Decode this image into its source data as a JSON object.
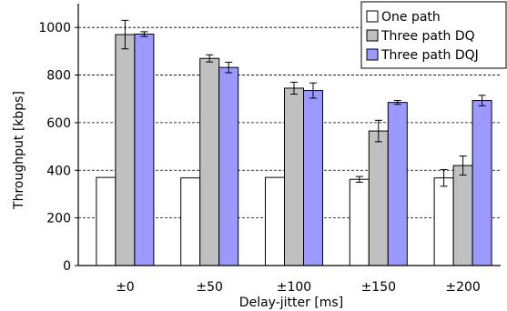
{
  "chart_data": {
    "type": "bar",
    "title": "",
    "xlabel": "Delay-jitter [ms]",
    "ylabel": "Throughput [kbps]",
    "ylim": [
      0,
      1100
    ],
    "yticks": [
      0,
      200,
      400,
      600,
      800,
      1000
    ],
    "categories": [
      "±0",
      "±50",
      "±100",
      "±150",
      "±200"
    ],
    "grid": "horizontal dashed",
    "legend_position": "top-right",
    "series": [
      {
        "name": "One path",
        "color": "#ffffff",
        "values": [
          370,
          368,
          370,
          362,
          368
        ],
        "errors": [
          0,
          0,
          0,
          12,
          35
        ]
      },
      {
        "name": "Three path DQ",
        "color": "#c0c0c0",
        "values": [
          970,
          870,
          745,
          565,
          420
        ],
        "errors": [
          60,
          15,
          25,
          45,
          40
        ]
      },
      {
        "name": "Three path DQJ",
        "color": "#9999ff",
        "values": [
          972,
          832,
          735,
          685,
          693
        ],
        "errors": [
          10,
          22,
          32,
          8,
          22
        ]
      }
    ]
  }
}
